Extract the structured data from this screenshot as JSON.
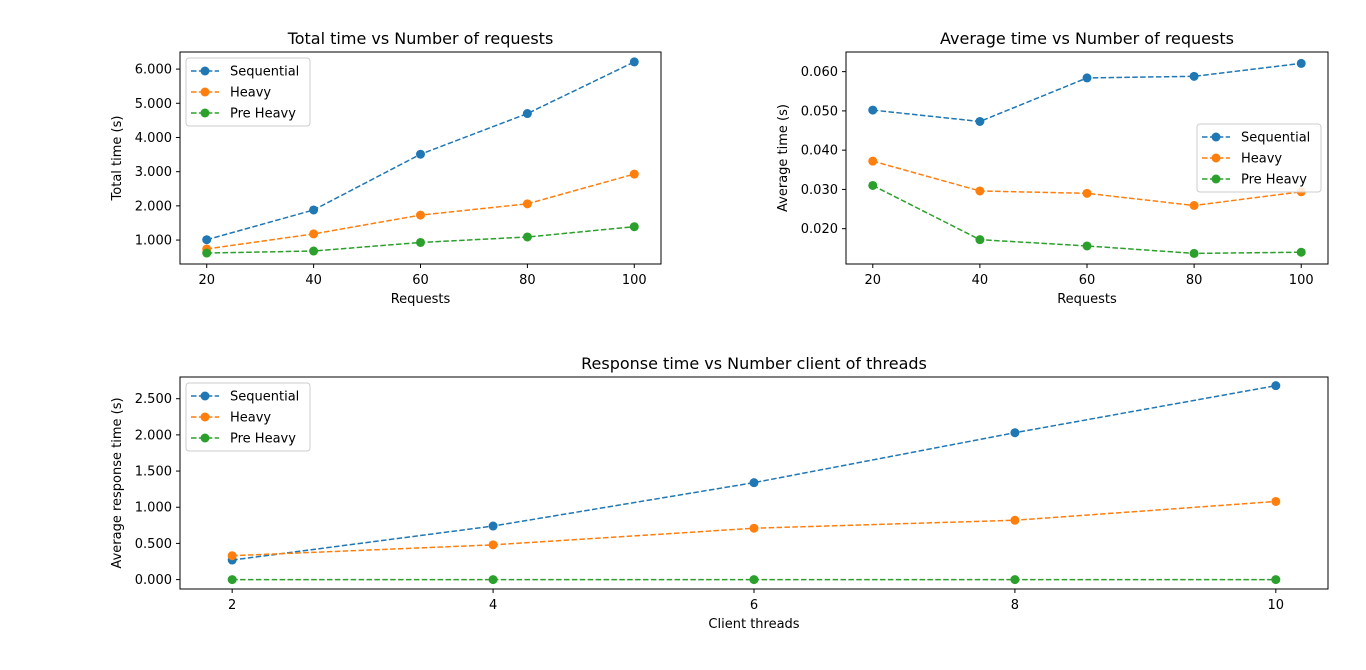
{
  "chart_data": [
    {
      "type": "line",
      "title": "Total time vs Number of requests",
      "xlabel": "Requests",
      "ylabel": "Total time (s)",
      "x": [
        20,
        40,
        60,
        80,
        100
      ],
      "xlim": [
        15,
        105
      ],
      "ylim": [
        0.3,
        6.5
      ],
      "xticks": [
        20,
        40,
        60,
        80,
        100
      ],
      "xtick_labels": [
        "20",
        "40",
        "60",
        "80",
        "100"
      ],
      "yticks": [
        1,
        2,
        3,
        4,
        5,
        6
      ],
      "ytick_labels": [
        "1.000",
        "2.000",
        "3.000",
        "4.000",
        "5.000",
        "6.000"
      ],
      "legend": "upper-left",
      "series": [
        {
          "name": "Sequential",
          "color": "#1f77b4",
          "values": [
            1.01,
            1.88,
            3.51,
            4.7,
            6.21
          ]
        },
        {
          "name": "Heavy",
          "color": "#ff7f0e",
          "values": [
            0.74,
            1.18,
            1.73,
            2.06,
            2.93
          ]
        },
        {
          "name": "Pre Heavy",
          "color": "#2ca02c",
          "values": [
            0.62,
            0.68,
            0.93,
            1.09,
            1.39
          ]
        }
      ]
    },
    {
      "type": "line",
      "title": "Average time vs Number of requests",
      "xlabel": "Requests",
      "ylabel": "Average time (s)",
      "x": [
        20,
        40,
        60,
        80,
        100
      ],
      "xlim": [
        15,
        105
      ],
      "ylim": [
        0.011,
        0.065
      ],
      "xticks": [
        20,
        40,
        60,
        80,
        100
      ],
      "xtick_labels": [
        "20",
        "40",
        "60",
        "80",
        "100"
      ],
      "yticks": [
        0.02,
        0.03,
        0.04,
        0.05,
        0.06
      ],
      "ytick_labels": [
        "0.020",
        "0.030",
        "0.040",
        "0.050",
        "0.060"
      ],
      "legend": "center-right",
      "series": [
        {
          "name": "Sequential",
          "color": "#1f77b4",
          "values": [
            0.0502,
            0.0473,
            0.0584,
            0.0588,
            0.0621
          ]
        },
        {
          "name": "Heavy",
          "color": "#ff7f0e",
          "values": [
            0.0372,
            0.0296,
            0.029,
            0.0259,
            0.0294
          ]
        },
        {
          "name": "Pre Heavy",
          "color": "#2ca02c",
          "values": [
            0.031,
            0.0172,
            0.0156,
            0.0137,
            0.014
          ]
        }
      ]
    },
    {
      "type": "line",
      "title": "Response time vs Number client of threads",
      "xlabel": "Client threads",
      "ylabel": "Average response time (s)",
      "x": [
        2,
        4,
        6,
        8,
        10
      ],
      "xlim": [
        1.6,
        10.4
      ],
      "ylim": [
        -0.13,
        2.8
      ],
      "xticks": [
        2,
        4,
        6,
        8,
        10
      ],
      "xtick_labels": [
        "2",
        "4",
        "6",
        "8",
        "10"
      ],
      "yticks": [
        0,
        0.5,
        1,
        1.5,
        2,
        2.5
      ],
      "ytick_labels": [
        "0.000",
        "0.500",
        "1.000",
        "1.500",
        "2.000",
        "2.500"
      ],
      "legend": "upper-left",
      "series": [
        {
          "name": "Sequential",
          "color": "#1f77b4",
          "values": [
            0.27,
            0.74,
            1.34,
            2.03,
            2.68
          ]
        },
        {
          "name": "Heavy",
          "color": "#ff7f0e",
          "values": [
            0.33,
            0.48,
            0.71,
            0.82,
            1.08
          ]
        },
        {
          "name": "Pre Heavy",
          "color": "#2ca02c",
          "values": [
            0.0,
            0.0,
            0.0,
            0.0,
            0.0
          ]
        }
      ]
    }
  ]
}
